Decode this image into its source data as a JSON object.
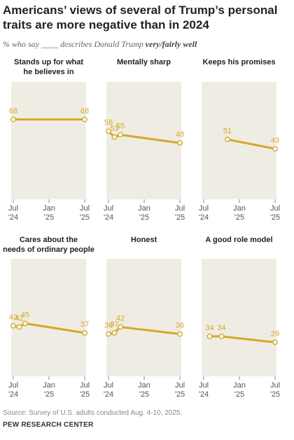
{
  "title": "Americans’ views of several of Trump’s personal traits are more negative than in 2024",
  "subtitle": {
    "prefix": "% who say",
    "blank": "____",
    "middle": "describes Donald Trump",
    "emphasis": "very/fairly well"
  },
  "source": "Source: Survey of U.S. adults conducted Aug. 4-10, 2025.",
  "organization": "PEW RESEARCH CENTER",
  "colors": {
    "line": "#d4a82a",
    "panel_bg": "#efede3",
    "label": "#d4a82a",
    "axis_text": "#555555"
  },
  "chart_data": [
    {
      "type": "line",
      "title": [
        "Stands up for what",
        "he believes in"
      ],
      "x": [
        "2024-07",
        "2025-07"
      ],
      "values": [
        68,
        68
      ],
      "x_ticks": [
        [
          "Jul",
          "'24"
        ],
        [
          "Jan",
          "'25"
        ],
        [
          "Jul",
          "'25"
        ]
      ],
      "ylim": [
        0,
        100
      ]
    },
    {
      "type": "line",
      "title": [
        "Mentally sharp"
      ],
      "x": [
        "2024-07",
        "2024-08",
        "2024-09",
        "2025-07"
      ],
      "values": [
        58,
        53,
        55,
        48
      ],
      "x_ticks": [
        [
          "Jul",
          "'24"
        ],
        [
          "Jan",
          "'25"
        ],
        [
          "Jul",
          "'25"
        ]
      ],
      "ylim": [
        0,
        100
      ]
    },
    {
      "type": "line",
      "title": [
        "Keeps his promises"
      ],
      "x": [
        "2024-11",
        "2025-07"
      ],
      "values": [
        51,
        43
      ],
      "x_ticks": [
        [
          "Jul",
          "'24"
        ],
        [
          "Jan",
          "'25"
        ],
        [
          "Jul",
          "'25"
        ]
      ],
      "ylim": [
        0,
        100
      ]
    },
    {
      "type": "line",
      "title": [
        "Cares about the",
        "needs of ordinary people"
      ],
      "x": [
        "2024-07",
        "2024-08",
        "2024-09",
        "2025-07"
      ],
      "values": [
        43,
        42,
        45,
        37
      ],
      "x_ticks": [
        [
          "Jul",
          "'24"
        ],
        [
          "Jan",
          "'25"
        ],
        [
          "Jul",
          "'25"
        ]
      ],
      "ylim": [
        0,
        100
      ]
    },
    {
      "type": "line",
      "title": [
        "Honest"
      ],
      "x": [
        "2024-07",
        "2024-08",
        "2024-09",
        "2025-07"
      ],
      "values": [
        36,
        37,
        42,
        36
      ],
      "x_ticks": [
        [
          "Jul",
          "'24"
        ],
        [
          "Jan",
          "'25"
        ],
        [
          "Jul",
          "'25"
        ]
      ],
      "ylim": [
        0,
        100
      ]
    },
    {
      "type": "line",
      "title": [
        "A good role model"
      ],
      "x": [
        "2024-08",
        "2024-10",
        "2025-07"
      ],
      "values": [
        34,
        34,
        29
      ],
      "x_ticks": [
        [
          "Jul",
          "'24"
        ],
        [
          "Jan",
          "'25"
        ],
        [
          "Jul",
          "'25"
        ]
      ],
      "ylim": [
        0,
        100
      ]
    }
  ]
}
